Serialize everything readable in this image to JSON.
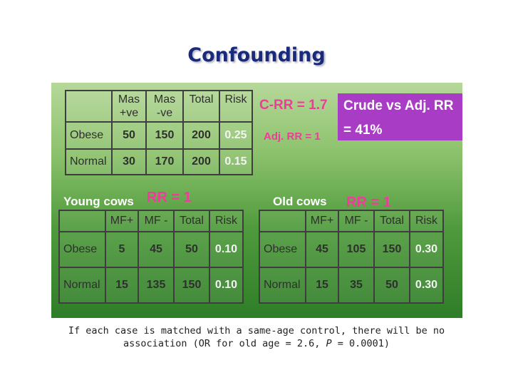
{
  "title": "Confounding",
  "crude_table": {
    "headers": [
      [
        "",
        ""
      ],
      [
        "Mas",
        "+ve"
      ],
      [
        "Mas",
        "-ve"
      ],
      [
        "Total",
        ""
      ],
      [
        "Risk",
        ""
      ]
    ],
    "rows": [
      [
        "Obese",
        "50",
        "150",
        "200",
        "0.25"
      ],
      [
        "Normal",
        "30",
        "170",
        "200",
        "0.15"
      ]
    ]
  },
  "c_rr": "C-RR = 1.7",
  "adj_rr": "Adj. RR = 1",
  "callout": {
    "line1": "Crude vs Adj. RR",
    "line2": "= 41%"
  },
  "young": {
    "label": "Young cows",
    "rr": "RR = 1",
    "headers": [
      "",
      "MF+",
      "MF -",
      "Total",
      "Risk"
    ],
    "rows": [
      [
        "Obese",
        "5",
        "45",
        "50",
        "0.10"
      ],
      [
        "Normal",
        "15",
        "135",
        "150",
        "0.10"
      ]
    ]
  },
  "old": {
    "label": "Old cows",
    "rr": "RR = 1",
    "headers": [
      "",
      "MF+",
      "MF -",
      "Total",
      "Risk"
    ],
    "rows": [
      [
        "Obese",
        "45",
        "105",
        "150",
        "0.30"
      ],
      [
        "Normal",
        "15",
        "35",
        "50",
        "0.30"
      ]
    ]
  },
  "caption": {
    "part1": "If each case is matched with a same-age control, there will be no association (OR for old age = 2.6, ",
    "p_letter": "P",
    "part2": " = 0.0001)"
  }
}
